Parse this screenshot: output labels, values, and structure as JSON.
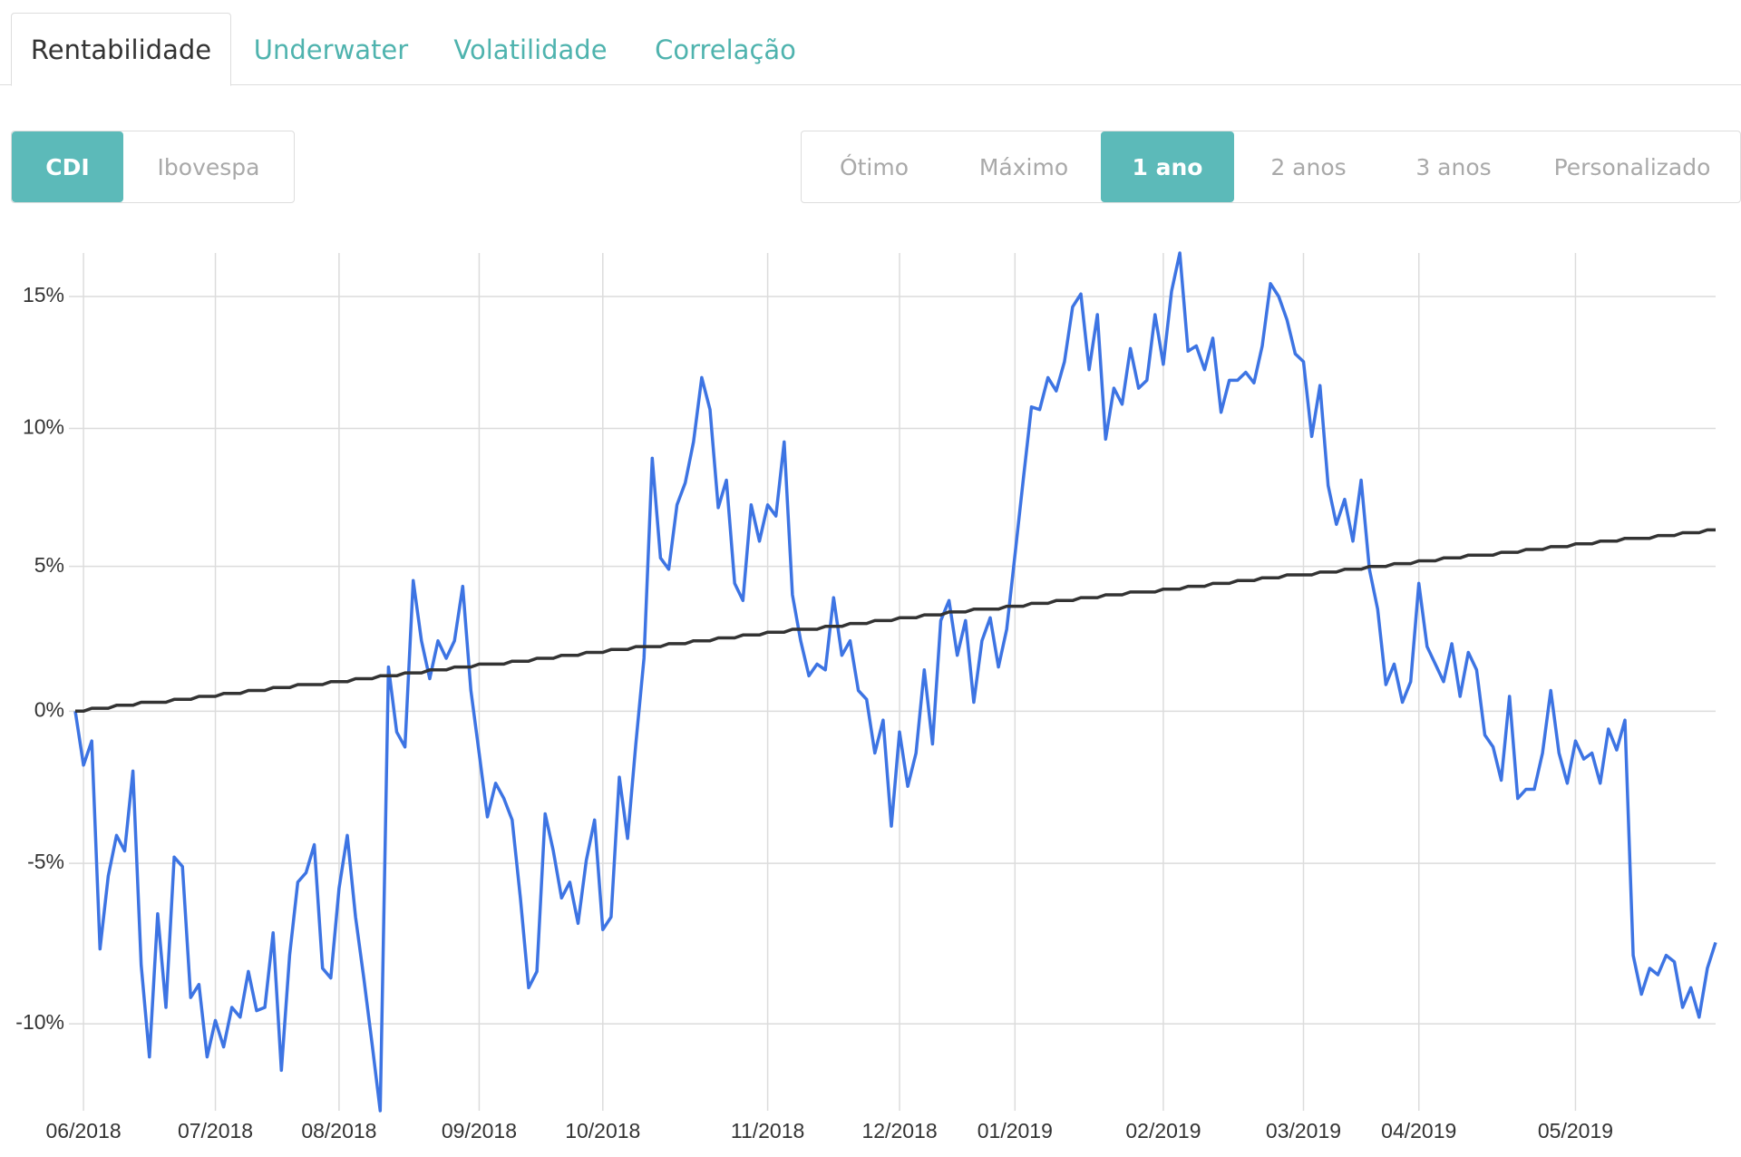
{
  "tabs": [
    {
      "label": "Rentabilidade",
      "active": true
    },
    {
      "label": "Underwater",
      "active": false
    },
    {
      "label": "Volatilidade",
      "active": false
    },
    {
      "label": "Correlação",
      "active": false
    }
  ],
  "benchmarks": [
    {
      "label": "CDI",
      "active": true
    },
    {
      "label": "Ibovespa",
      "active": false
    }
  ],
  "periods": [
    {
      "label": "Ótimo",
      "active": false
    },
    {
      "label": "Máximo",
      "active": false
    },
    {
      "label": "1 ano",
      "active": true
    },
    {
      "label": "2 anos",
      "active": false
    },
    {
      "label": "3 anos",
      "active": false
    },
    {
      "label": "Personalizado",
      "active": false
    }
  ],
  "chart_data": {
    "type": "line",
    "log_scale": true,
    "grid": true,
    "categories": [
      null,
      "06/2018",
      null,
      null,
      null,
      null,
      null,
      null,
      null,
      null,
      null,
      null,
      null,
      null,
      null,
      null,
      null,
      "07/2018",
      null,
      null,
      null,
      null,
      null,
      null,
      null,
      null,
      null,
      null,
      null,
      null,
      null,
      null,
      "08/2018",
      null,
      null,
      null,
      null,
      null,
      null,
      null,
      null,
      null,
      null,
      null,
      null,
      null,
      null,
      null,
      null,
      "09/2018",
      null,
      null,
      null,
      null,
      null,
      null,
      null,
      null,
      null,
      null,
      null,
      null,
      null,
      null,
      "10/2018",
      null,
      null,
      null,
      null,
      null,
      null,
      null,
      null,
      null,
      null,
      null,
      null,
      null,
      null,
      null,
      null,
      null,
      null,
      null,
      "11/2018",
      null,
      null,
      null,
      null,
      null,
      null,
      null,
      null,
      null,
      null,
      null,
      null,
      null,
      null,
      null,
      "12/2018",
      null,
      null,
      null,
      null,
      null,
      null,
      null,
      null,
      null,
      null,
      null,
      null,
      null,
      "01/2019",
      null,
      null,
      null,
      null,
      null,
      null,
      null,
      null,
      null,
      null,
      null,
      null,
      null,
      null,
      null,
      null,
      null,
      "02/2019",
      null,
      null,
      null,
      null,
      null,
      null,
      null,
      null,
      null,
      null,
      null,
      null,
      null,
      null,
      null,
      null,
      "03/2019",
      null,
      null,
      null,
      null,
      null,
      null,
      null,
      null,
      null,
      null,
      null,
      null,
      null,
      "04/2019",
      null,
      null,
      null,
      null,
      null,
      null,
      null,
      null,
      null,
      null,
      null,
      null,
      null,
      null,
      null,
      null,
      null,
      null,
      "05/2019",
      null,
      null,
      null,
      null,
      null,
      null,
      null,
      null,
      null,
      null,
      null,
      null,
      null,
      null,
      null,
      null,
      null
    ],
    "series": [
      {
        "color": "#3d74e3",
        "values": [
          0.0,
          -1.8,
          -1.0,
          -7.7,
          -5.4,
          -4.1,
          -4.6,
          -2.0,
          -8.2,
          -11.0,
          -6.6,
          -9.5,
          -4.8,
          -5.1,
          -9.2,
          -8.8,
          -11.0,
          -9.9,
          -10.7,
          -9.5,
          -9.8,
          -8.4,
          -9.6,
          -9.5,
          -7.2,
          -11.4,
          -7.9,
          -5.6,
          -5.3,
          -4.4,
          -8.3,
          -8.6,
          -5.8,
          -4.1,
          -6.7,
          -8.6,
          -10.6,
          -12.6,
          1.5,
          -0.7,
          -1.2,
          4.5,
          2.4,
          1.1,
          2.4,
          1.8,
          2.4,
          4.3,
          0.7,
          -1.4,
          -3.5,
          -2.4,
          -2.9,
          -3.6,
          -6.1,
          -8.9,
          -8.4,
          -3.4,
          -4.6,
          -6.1,
          -5.6,
          -6.9,
          -4.9,
          -3.6,
          -7.1,
          -6.7,
          -2.2,
          -4.2,
          -1.1,
          1.8,
          8.9,
          5.3,
          4.9,
          7.2,
          8.0,
          9.5,
          11.9,
          10.7,
          7.1,
          8.1,
          4.4,
          3.8,
          7.2,
          5.9,
          7.2,
          6.8,
          9.5,
          4.0,
          2.4,
          1.2,
          1.6,
          1.4,
          3.9,
          1.9,
          2.4,
          0.7,
          0.4,
          -1.4,
          -0.3,
          -3.8,
          -0.7,
          -2.5,
          -1.4,
          1.4,
          -1.1,
          3.1,
          3.8,
          1.9,
          3.1,
          0.3,
          2.4,
          3.2,
          1.5,
          2.8,
          5.4,
          8.1,
          10.8,
          10.7,
          11.9,
          11.4,
          12.5,
          14.6,
          15.1,
          12.2,
          14.3,
          9.6,
          11.5,
          10.9,
          13.0,
          11.5,
          11.8,
          14.3,
          12.4,
          15.2,
          16.7,
          12.9,
          13.1,
          12.2,
          13.4,
          10.6,
          11.8,
          11.8,
          12.1,
          11.7,
          13.1,
          15.5,
          15.0,
          14.1,
          12.8,
          12.5,
          9.7,
          11.6,
          7.9,
          6.5,
          7.4,
          5.9,
          8.1,
          4.9,
          3.5,
          0.9,
          1.6,
          0.3,
          1.0,
          4.4,
          2.2,
          1.6,
          1.0,
          2.3,
          0.5,
          2.0,
          1.4,
          -0.8,
          -1.2,
          -2.3,
          0.5,
          -2.9,
          -2.6,
          -2.6,
          -1.4,
          0.7,
          -1.4,
          -2.4,
          -1.0,
          -1.6,
          -1.4,
          -2.4,
          -0.6,
          -1.3,
          -0.3,
          -7.9,
          -9.1,
          -8.3,
          -8.5,
          -7.9,
          -8.1,
          -9.5,
          -8.9,
          -9.8,
          -8.3,
          -7.5
        ]
      },
      {
        "color": "#333333",
        "values": [
          0.0,
          0.0,
          0.1,
          0.1,
          0.1,
          0.2,
          0.2,
          0.2,
          0.3,
          0.3,
          0.3,
          0.3,
          0.4,
          0.4,
          0.4,
          0.5,
          0.5,
          0.5,
          0.6,
          0.6,
          0.6,
          0.7,
          0.7,
          0.7,
          0.8,
          0.8,
          0.8,
          0.9,
          0.9,
          0.9,
          0.9,
          1.0,
          1.0,
          1.0,
          1.1,
          1.1,
          1.1,
          1.2,
          1.2,
          1.2,
          1.3,
          1.3,
          1.3,
          1.4,
          1.4,
          1.4,
          1.5,
          1.5,
          1.5,
          1.6,
          1.6,
          1.6,
          1.6,
          1.7,
          1.7,
          1.7,
          1.8,
          1.8,
          1.8,
          1.9,
          1.9,
          1.9,
          2.0,
          2.0,
          2.0,
          2.1,
          2.1,
          2.1,
          2.2,
          2.2,
          2.2,
          2.2,
          2.3,
          2.3,
          2.3,
          2.4,
          2.4,
          2.4,
          2.5,
          2.5,
          2.5,
          2.6,
          2.6,
          2.6,
          2.7,
          2.7,
          2.7,
          2.8,
          2.8,
          2.8,
          2.8,
          2.9,
          2.9,
          2.9,
          3.0,
          3.0,
          3.0,
          3.1,
          3.1,
          3.1,
          3.2,
          3.2,
          3.2,
          3.3,
          3.3,
          3.3,
          3.4,
          3.4,
          3.4,
          3.5,
          3.5,
          3.5,
          3.5,
          3.6,
          3.6,
          3.6,
          3.7,
          3.7,
          3.7,
          3.8,
          3.8,
          3.8,
          3.9,
          3.9,
          3.9,
          4.0,
          4.0,
          4.0,
          4.1,
          4.1,
          4.1,
          4.1,
          4.2,
          4.2,
          4.2,
          4.3,
          4.3,
          4.3,
          4.4,
          4.4,
          4.4,
          4.5,
          4.5,
          4.5,
          4.6,
          4.6,
          4.6,
          4.7,
          4.7,
          4.7,
          4.7,
          4.8,
          4.8,
          4.8,
          4.9,
          4.9,
          4.9,
          5.0,
          5.0,
          5.0,
          5.1,
          5.1,
          5.1,
          5.2,
          5.2,
          5.2,
          5.3,
          5.3,
          5.3,
          5.4,
          5.4,
          5.4,
          5.4,
          5.5,
          5.5,
          5.5,
          5.6,
          5.6,
          5.6,
          5.7,
          5.7,
          5.7,
          5.8,
          5.8,
          5.8,
          5.9,
          5.9,
          5.9,
          6.0,
          6.0,
          6.0,
          6.0,
          6.1,
          6.1,
          6.1,
          6.2,
          6.2,
          6.2,
          6.3,
          6.3
        ]
      }
    ],
    "ylim": [
      -12.6,
      16.7
    ],
    "yticks": [
      {
        "value": -10,
        "label": "-10%"
      },
      {
        "value": -5,
        "label": "-5%"
      },
      {
        "value": 0,
        "label": "0%"
      },
      {
        "value": 5,
        "label": "5%"
      },
      {
        "value": 10,
        "label": "10%"
      },
      {
        "value": 15,
        "label": "15%"
      }
    ]
  }
}
